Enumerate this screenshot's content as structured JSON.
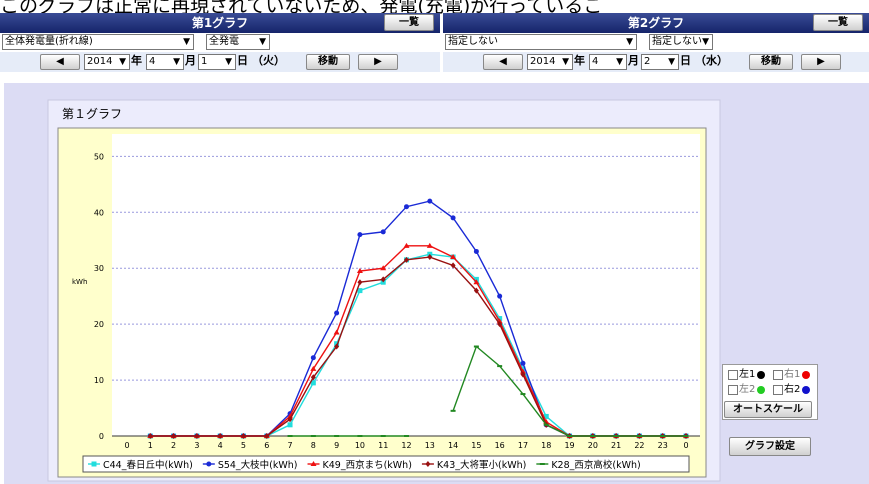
{
  "banner": "このグラフは正常に再現されていないため、発電(充電)が行っているこ",
  "panels": [
    {
      "title": "第1グラフ",
      "list_button": "一覧",
      "selects": [
        "全体発電量(折れ線)",
        "全発電"
      ],
      "nav": {
        "prev": "◀",
        "year": "2014",
        "year_unit": "年",
        "month": "4",
        "month_unit": "月",
        "day": "1",
        "day_unit": "日",
        "weekday": "（火）",
        "move": "移動",
        "next": "▶"
      }
    },
    {
      "title": "第2グラフ",
      "list_button": "一覧",
      "selects": [
        "指定しない",
        "指定しない"
      ],
      "nav": {
        "prev": "◀",
        "year": "2014",
        "year_unit": "年",
        "month": "4",
        "month_unit": "月",
        "day": "2",
        "day_unit": "日",
        "weekday": "（水）",
        "move": "移動",
        "next": "▶"
      }
    }
  ],
  "chart_data": {
    "type": "line",
    "title": "第１グラフ",
    "y_label": "kWh",
    "categories": [
      "0",
      "1",
      "2",
      "3",
      "4",
      "5",
      "6",
      "7",
      "8",
      "9",
      "10",
      "11",
      "12",
      "13",
      "14",
      "15",
      "16",
      "17",
      "18",
      "19",
      "20",
      "21",
      "22",
      "23",
      "0"
    ],
    "ylim": [
      0,
      54
    ],
    "yticks": [
      0,
      10,
      20,
      30,
      40,
      50
    ],
    "grid": true,
    "series": [
      {
        "name": "C44_春日丘中(kWh)",
        "color": "#22dddd",
        "marker": "square",
        "values": [
          null,
          0,
          0,
          0,
          0,
          0,
          0,
          2,
          9.5,
          16.5,
          26,
          27.5,
          31.5,
          32.5,
          32,
          28,
          21,
          12,
          3.5,
          0,
          0,
          0,
          0,
          0,
          0
        ]
      },
      {
        "name": "S54_大枝中(kWh)",
        "color": "#1a2ad6",
        "marker": "circle",
        "values": [
          null,
          0,
          0,
          0,
          0,
          0,
          0,
          4,
          14,
          22,
          36,
          36.5,
          41,
          42,
          39,
          33,
          25,
          13,
          2,
          0,
          0,
          0,
          0,
          0,
          0
        ]
      },
      {
        "name": "K49_西京まち(kWh)",
        "color": "#ee1111",
        "marker": "triangle",
        "values": [
          null,
          0,
          0,
          0,
          0,
          0,
          0,
          3.5,
          12,
          18.5,
          29.5,
          30,
          34,
          34,
          32,
          27.5,
          20.5,
          11.5,
          2.5,
          0,
          0,
          0,
          0,
          0,
          0
        ]
      },
      {
        "name": "K43_大将軍小(kWh)",
        "color": "#991111",
        "marker": "diamond",
        "values": [
          null,
          0,
          0,
          0,
          0,
          0,
          0,
          3,
          10.5,
          16,
          27.5,
          28,
          31.5,
          32,
          30.5,
          26,
          20,
          11,
          2,
          0,
          0,
          0,
          0,
          0,
          0
        ]
      },
      {
        "name": "K28_西京高校(kWh)",
        "color": "#228822",
        "marker": "dash",
        "values": [
          null,
          null,
          null,
          null,
          null,
          null,
          null,
          0,
          0,
          0,
          0,
          0,
          0,
          null,
          4.5,
          16,
          12.5,
          7.5,
          2,
          0,
          0,
          0,
          0,
          0,
          0
        ]
      }
    ]
  },
  "side": {
    "checks": [
      "左1",
      "右1",
      "左2",
      "右2"
    ],
    "autoscale": "オートスケール",
    "settings": "グラフ設定"
  }
}
